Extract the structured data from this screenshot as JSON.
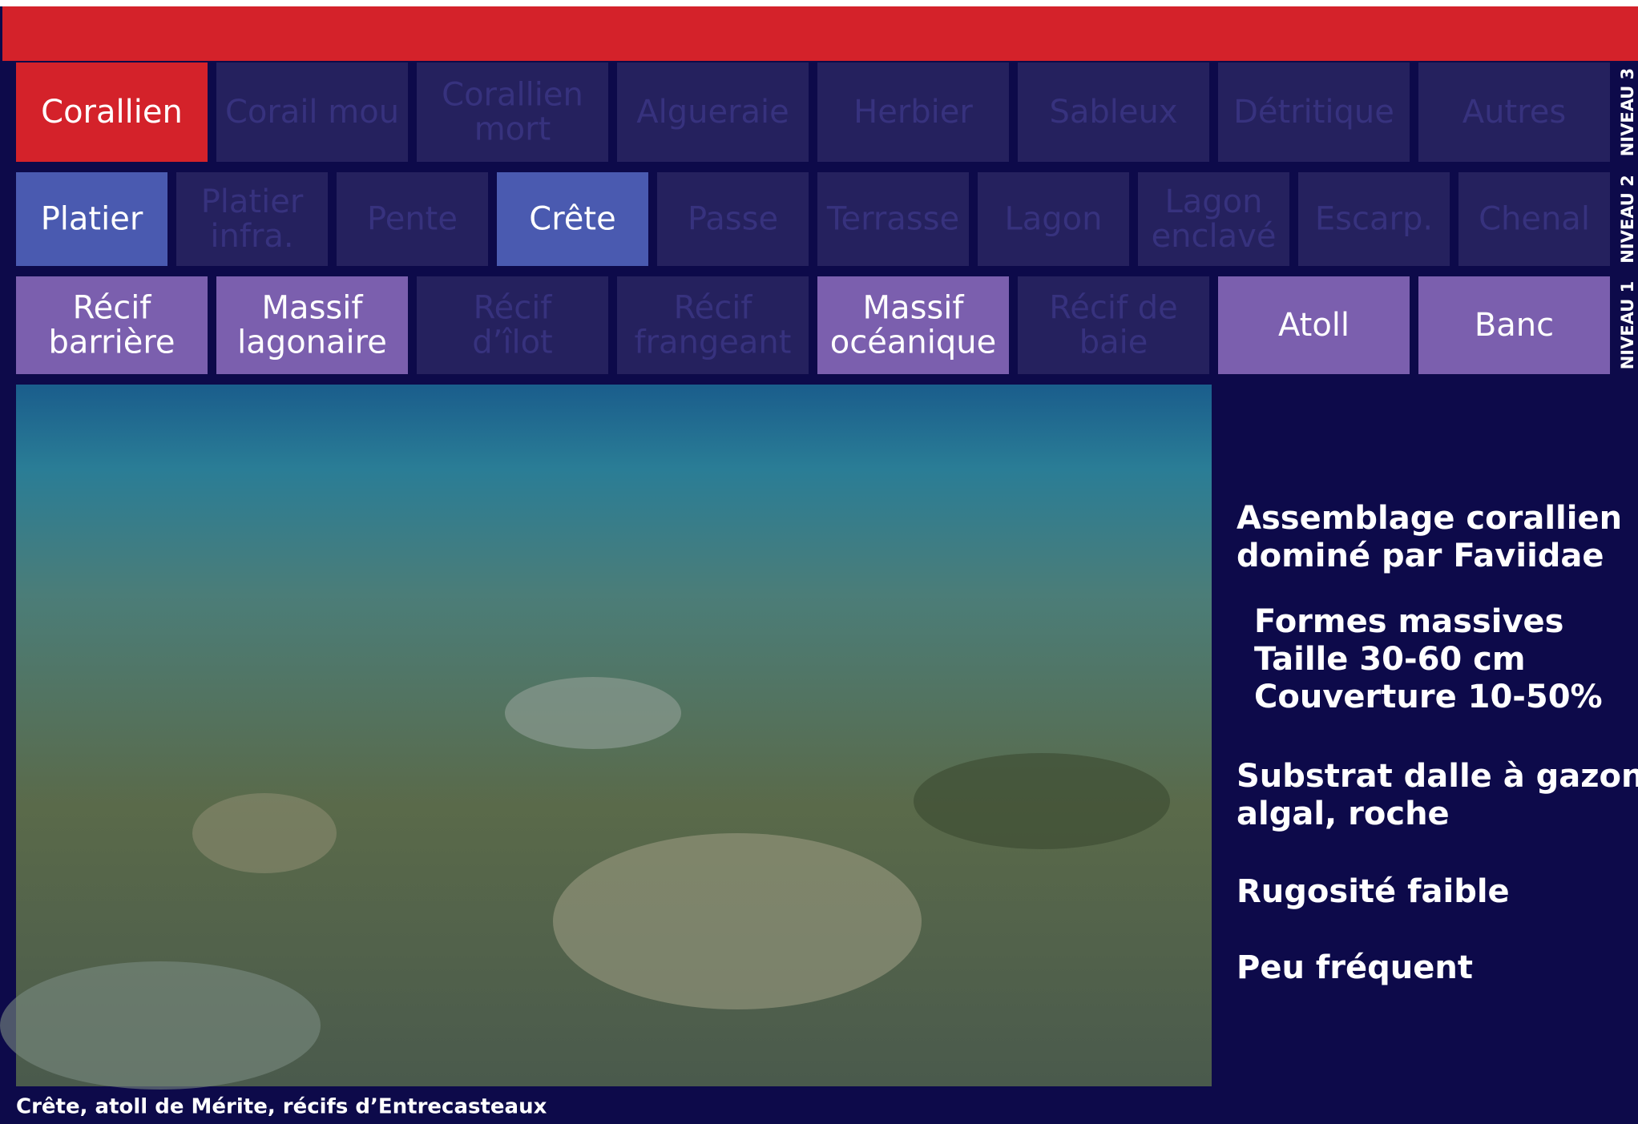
{
  "levels": [
    {
      "name": "NIVEAU 3",
      "tabs": [
        {
          "lines": [
            "Corallien"
          ],
          "active": true
        },
        {
          "lines": [
            "Corail mou"
          ],
          "active": false
        },
        {
          "lines": [
            "Corallien",
            "mort"
          ],
          "active": false
        },
        {
          "lines": [
            "Algueraie"
          ],
          "active": false
        },
        {
          "lines": [
            "Herbier"
          ],
          "active": false
        },
        {
          "lines": [
            "Sableux"
          ],
          "active": false
        },
        {
          "lines": [
            "Détritique"
          ],
          "active": false
        },
        {
          "lines": [
            "Autres"
          ],
          "active": false
        }
      ]
    },
    {
      "name": "NIVEAU 2",
      "tabs": [
        {
          "lines": [
            "Platier"
          ],
          "active": true
        },
        {
          "lines": [
            "Platier",
            "infra."
          ],
          "active": false
        },
        {
          "lines": [
            "Pente"
          ],
          "active": false
        },
        {
          "lines": [
            "Crête"
          ],
          "active": true
        },
        {
          "lines": [
            "Passe"
          ],
          "active": false
        },
        {
          "lines": [
            "Terrasse"
          ],
          "active": false
        },
        {
          "lines": [
            "Lagon"
          ],
          "active": false
        },
        {
          "lines": [
            "Lagon",
            "enclavé"
          ],
          "active": false
        },
        {
          "lines": [
            "Escarp."
          ],
          "active": false
        },
        {
          "lines": [
            "Chenal"
          ],
          "active": false
        }
      ]
    },
    {
      "name": "NIVEAU 1",
      "tabs": [
        {
          "lines": [
            "Récif",
            "barrière"
          ],
          "active": true
        },
        {
          "lines": [
            "Massif",
            "lagonaire"
          ],
          "active": true
        },
        {
          "lines": [
            "Récif",
            "d’îlot"
          ],
          "active": false
        },
        {
          "lines": [
            "Récif",
            "frangeant"
          ],
          "active": false
        },
        {
          "lines": [
            "Massif",
            "océanique"
          ],
          "active": true
        },
        {
          "lines": [
            "Récif de",
            "baie"
          ],
          "active": false
        },
        {
          "lines": [
            "Atoll"
          ],
          "active": true
        },
        {
          "lines": [
            "Banc"
          ],
          "active": true
        }
      ]
    }
  ],
  "description": [
    [
      "Assemblage corallien",
      "dominé par Faviidae"
    ],
    [
      "Formes massives",
      "Taille 30-60 cm",
      "Couverture  10-50%"
    ],
    [
      "Substrat dalle à gazon",
      "algal, roche"
    ],
    [
      "Rugosité faible"
    ],
    [
      "Peu fréquent"
    ]
  ],
  "caption": "Crête, atoll de Mérite, récifs d’Entrecasteaux"
}
